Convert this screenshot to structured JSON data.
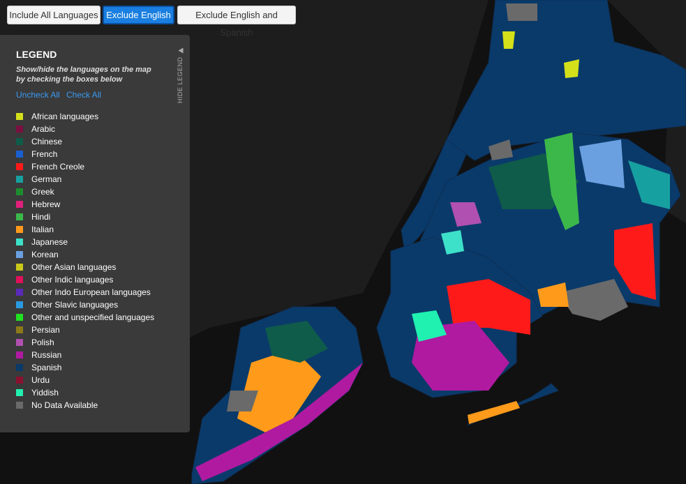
{
  "buttons": [
    "Include All Languages",
    "Exclude English",
    "Exclude English and Spanish"
  ],
  "selected_button": 1,
  "legend": {
    "title": "LEGEND",
    "subtitle_lines": [
      "Show/hide the languages on the map",
      "by checking the boxes below"
    ],
    "links": [
      "Uncheck All",
      "Check All"
    ],
    "hide_label": "HIDE LEGEND",
    "items": [
      {
        "label": "African languages",
        "color": "#d4e01a"
      },
      {
        "label": "Arabic",
        "color": "#7a1040"
      },
      {
        "label": "Chinese",
        "color": "#0f5c4a"
      },
      {
        "label": "French",
        "color": "#1a5fd0"
      },
      {
        "label": "French Creole",
        "color": "#ff1a1a"
      },
      {
        "label": "German",
        "color": "#17a0a0"
      },
      {
        "label": "Greek",
        "color": "#1e8c2e"
      },
      {
        "label": "Hebrew",
        "color": "#e0207a"
      },
      {
        "label": "Hindi",
        "color": "#3cb84a"
      },
      {
        "label": "Italian",
        "color": "#ff9a1a"
      },
      {
        "label": "Japanese",
        "color": "#3de0c8"
      },
      {
        "label": "Korean",
        "color": "#6aa0e0"
      },
      {
        "label": "Other Asian languages",
        "color": "#c8c81a"
      },
      {
        "label": "Other Indic languages",
        "color": "#e0105a"
      },
      {
        "label": "Other Indo European languages",
        "color": "#5a2ab8"
      },
      {
        "label": "Other Slavic languages",
        "color": "#2a9ae0"
      },
      {
        "label": "Other and unspecified languages",
        "color": "#20e020"
      },
      {
        "label": "Persian",
        "color": "#8a7a1a"
      },
      {
        "label": "Polish",
        "color": "#b050b0"
      },
      {
        "label": "Russian",
        "color": "#b01aa0"
      },
      {
        "label": "Spanish",
        "color": "#0a3a6a"
      },
      {
        "label": "Urdu",
        "color": "#8a1030"
      },
      {
        "label": "Yiddish",
        "color": "#20f0b0"
      },
      {
        "label": "No Data Available",
        "color": "#6a6a6a"
      }
    ]
  }
}
